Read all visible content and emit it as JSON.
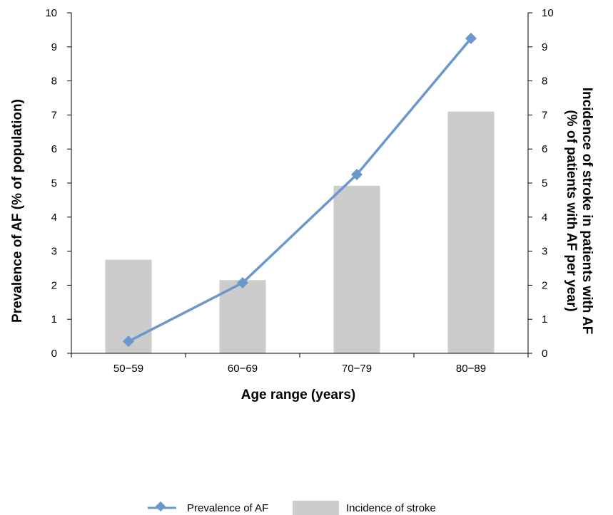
{
  "chart_data": {
    "type": "bar",
    "categories": [
      "50−59",
      "60−69",
      "70−79",
      "80−89"
    ],
    "series": [
      {
        "name": "Prevalence of AF",
        "type": "line",
        "axis": "left",
        "color": "#6a98cd",
        "marker": "diamond",
        "values": [
          0.35,
          2.07,
          5.25,
          9.25
        ]
      },
      {
        "name": "Incidence of stroke",
        "type": "bar",
        "axis": "right",
        "color": "#cccccc",
        "values": [
          2.75,
          2.15,
          4.92,
          7.1
        ]
      }
    ],
    "xlabel": "Age range (years)",
    "ylabel": "Prevalence of AF (% of population)",
    "y2label_line1": "Incidence of stroke in patients with AF",
    "y2label_line2": "(% of patients with AF per year)",
    "ylim": [
      0,
      10
    ],
    "y2lim": [
      0,
      10
    ],
    "yticks": [
      "0",
      "1",
      "2",
      "3",
      "4",
      "5",
      "6",
      "7",
      "8",
      "9",
      "10"
    ],
    "y2ticks": [
      "0",
      "1",
      "2",
      "3",
      "4",
      "5",
      "6",
      "7",
      "8",
      "9",
      "10"
    ],
    "grid": false,
    "legend_position": "bottom"
  }
}
